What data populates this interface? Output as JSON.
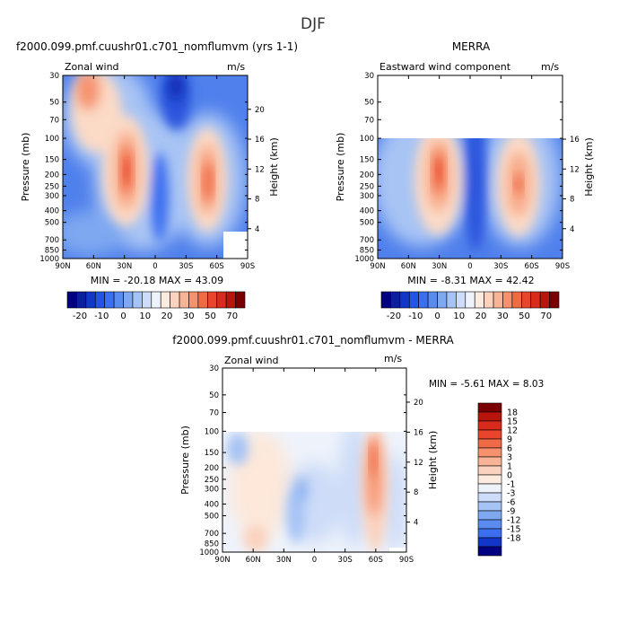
{
  "page_title": "DJF",
  "chart_data": [
    {
      "id": "model",
      "type": "heatmap",
      "title": "f2000.099.pmf.cuushr01.c701_nomflumvm (yrs 1-1)",
      "left_label": "Zonal wind",
      "units": "m/s",
      "ylabel": "Pressure (mb)",
      "ylabel_right": "Height (km)",
      "x_ticks": [
        "90N",
        "60N",
        "30N",
        "0",
        "30S",
        "60S",
        "90S"
      ],
      "x_tick_values": [
        90,
        60,
        30,
        0,
        -30,
        -60,
        -90
      ],
      "y_ticks": [
        "30",
        "50",
        "70",
        "100",
        "150",
        "200",
        "250",
        "300",
        "400",
        "500",
        "700",
        "850",
        "1000"
      ],
      "y_tick_values": [
        30,
        50,
        70,
        100,
        150,
        200,
        250,
        300,
        400,
        500,
        700,
        850,
        1000
      ],
      "height_ticks": [
        "20",
        "16",
        "12",
        "8",
        "4"
      ],
      "height_tick_values": [
        20,
        16,
        12,
        8,
        4
      ],
      "data_top_pressure": 30,
      "stats_text": "MIN = -20.18   MAX =  43.09",
      "min": -20.18,
      "max": 43.09,
      "field_features": [
        {
          "lat": 70,
          "p": 40,
          "value": 25
        },
        {
          "lat": 32,
          "p": 200,
          "value": 43.09
        },
        {
          "lat": -48,
          "p": 220,
          "value": 38
        },
        {
          "lat": 5,
          "p": 40,
          "value": -20.18
        }
      ]
    },
    {
      "id": "merra",
      "type": "heatmap",
      "title": "MERRA",
      "left_label": "Eastward wind component",
      "units": "m/s",
      "ylabel": "Pressure (mb)",
      "ylabel_right": "Height (km)",
      "x_ticks": [
        "90N",
        "60N",
        "30N",
        "0",
        "30S",
        "60S",
        "90S"
      ],
      "x_tick_values": [
        90,
        60,
        30,
        0,
        -30,
        -60,
        -90
      ],
      "y_ticks": [
        "30",
        "50",
        "70",
        "100",
        "150",
        "200",
        "250",
        "300",
        "400",
        "500",
        "700",
        "850",
        "1000"
      ],
      "y_tick_values": [
        30,
        50,
        70,
        100,
        150,
        200,
        250,
        300,
        400,
        500,
        700,
        850,
        1000
      ],
      "height_ticks": [
        "16",
        "12",
        "8",
        "4"
      ],
      "height_tick_values": [
        16,
        12,
        8,
        4
      ],
      "data_top_pressure": 100,
      "stats_text": "MIN =  -8.31   MAX =  42.42",
      "min": -8.31,
      "max": 42.42,
      "field_features": [
        {
          "lat": 30,
          "p": 200,
          "value": 42.42
        },
        {
          "lat": -45,
          "p": 250,
          "value": 38
        },
        {
          "lat": 5,
          "p": 300,
          "value": -8.31
        }
      ]
    },
    {
      "id": "diff",
      "type": "heatmap",
      "title": "f2000.099.pmf.cuushr01.c701_nomflumvm - MERRA",
      "left_label": "Zonal wind",
      "units": "m/s",
      "ylabel": "Pressure (mb)",
      "ylabel_right": "Height (km)",
      "x_ticks": [
        "90N",
        "60N",
        "30N",
        "0",
        "30S",
        "60S",
        "90S"
      ],
      "x_tick_values": [
        90,
        60,
        30,
        0,
        -30,
        -60,
        -90
      ],
      "y_ticks": [
        "30",
        "50",
        "70",
        "100",
        "150",
        "200",
        "250",
        "300",
        "400",
        "500",
        "700",
        "850",
        "1000"
      ],
      "y_tick_values": [
        30,
        50,
        70,
        100,
        150,
        200,
        250,
        300,
        400,
        500,
        700,
        850,
        1000
      ],
      "height_ticks": [
        "20",
        "16",
        "12",
        "8",
        "4"
      ],
      "height_tick_values": [
        20,
        16,
        12,
        8,
        4
      ],
      "data_top_pressure": 100,
      "stats_text": "MIN =   -5.61  MAX =    8.03",
      "min": -5.61,
      "max": 8.03,
      "field_features": [
        {
          "lat": -55,
          "p": 200,
          "value": 8.03
        },
        {
          "lat": 45,
          "p": 250,
          "value": 2
        },
        {
          "lat": 10,
          "p": 400,
          "value": -5.61
        }
      ]
    }
  ],
  "colorbar_horizontal": {
    "labels": [
      "-20",
      "-10",
      "0",
      "10",
      "20",
      "30",
      "50",
      "70"
    ],
    "colors": [
      "#000080",
      "#0a1ea0",
      "#1237c8",
      "#2255e6",
      "#3b6ef0",
      "#5a8cf0",
      "#7ea8f0",
      "#a5c3f5",
      "#cddcf8",
      "#eef3fb",
      "#fdebe0",
      "#fbd2bd",
      "#f8b496",
      "#f5916d",
      "#f06a46",
      "#e8452c",
      "#d82b1c",
      "#b8160d",
      "#780000"
    ]
  },
  "colorbar_vertical": {
    "labels": [
      "18",
      "15",
      "12",
      "9",
      "6",
      "3",
      "1",
      "0",
      "-1",
      "-3",
      "-6",
      "-9",
      "-12",
      "-15",
      "-18"
    ],
    "colors": [
      "#780000",
      "#b8160d",
      "#d82b1c",
      "#e8452c",
      "#f06a46",
      "#f5916d",
      "#f8b496",
      "#fbd2bd",
      "#fdebe0",
      "#eef3fb",
      "#cddcf8",
      "#a5c3f5",
      "#7ea8f0",
      "#5a8cf0",
      "#3b6ef0",
      "#1237c8",
      "#000080"
    ]
  }
}
